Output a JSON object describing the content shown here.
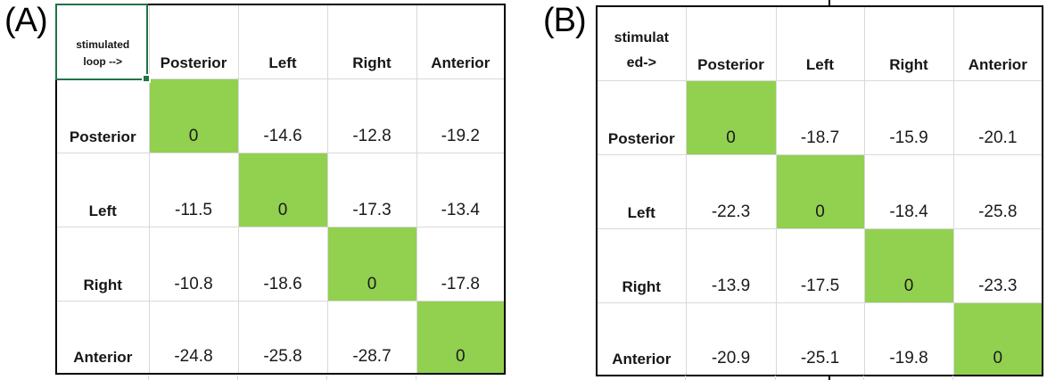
{
  "style": {
    "diagonal_fill_color": "#92d050",
    "selection_border_color": "#217346",
    "gridline_color": "#d9d9d9",
    "table_border_color": "#000000"
  },
  "chart_data": [
    {
      "type": "table",
      "panel_label": "(A)",
      "corner_cell_text": "stimulated loop -->",
      "corner_cell_lines": [
        "stimulated",
        "loop -->"
      ],
      "columns": [
        "Posterior",
        "Left",
        "Right",
        "Anterior"
      ],
      "row_labels": [
        "Posterior",
        "Left",
        "Right",
        "Anterior"
      ],
      "values": [
        [
          "0",
          "-14.6",
          "-12.8",
          "-19.2"
        ],
        [
          "-11.5",
          "0",
          "-17.3",
          "-13.4"
        ],
        [
          "-10.8",
          "-18.6",
          "0",
          "-17.8"
        ],
        [
          "-24.8",
          "-25.8",
          "-28.7",
          "0"
        ]
      ],
      "highlighted_cells": "diagonal",
      "highlight_color": "#92d050",
      "selected_cell": "corner"
    },
    {
      "type": "table",
      "panel_label": "(B)",
      "corner_cell_text": "stimulated->",
      "corner_cell_lines": [
        "stimulat",
        "ed->"
      ],
      "columns": [
        "Posterior",
        "Left",
        "Right",
        "Anterior"
      ],
      "row_labels": [
        "Posterior",
        "Left",
        "Right",
        "Anterior"
      ],
      "values": [
        [
          "0",
          "-18.7",
          "-15.9",
          "-20.1"
        ],
        [
          "-22.3",
          "0",
          "-18.4",
          "-25.8"
        ],
        [
          "-13.9",
          "-17.5",
          "0",
          "-23.3"
        ],
        [
          "-20.9",
          "-25.1",
          "-19.8",
          "0"
        ]
      ],
      "highlighted_cells": "diagonal",
      "highlight_color": "#92d050",
      "selected_cell": "none"
    }
  ]
}
